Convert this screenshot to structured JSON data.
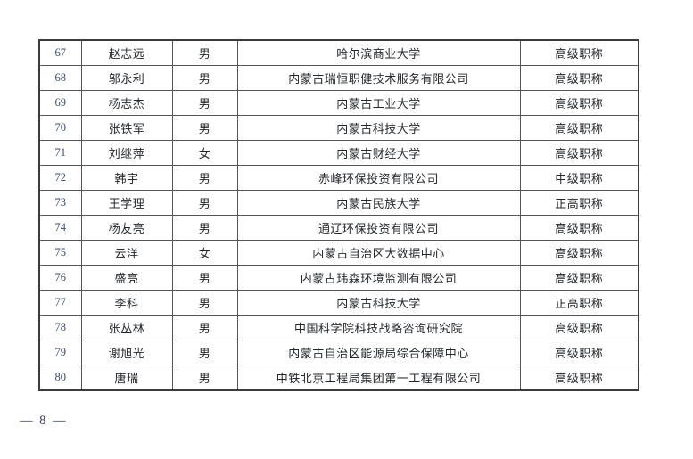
{
  "document": {
    "footer_page_number": "— 8 —"
  },
  "colors": {
    "outer_border": "#3c3c3c",
    "grid_border": "#565656",
    "text": "#23272b",
    "number_text": "#3d4b63",
    "page_background": "#ffffff"
  },
  "table": {
    "rows": [
      {
        "no": "67",
        "name": "赵志远",
        "gender": "男",
        "organization": "哈尔滨商业大学",
        "title": "高级职称"
      },
      {
        "no": "68",
        "name": "邬永利",
        "gender": "男",
        "organization": "内蒙古瑞恒职健技术服务有限公司",
        "title": "高级职称"
      },
      {
        "no": "69",
        "name": "杨志杰",
        "gender": "男",
        "organization": "内蒙古工业大学",
        "title": "高级职称"
      },
      {
        "no": "70",
        "name": "张铁军",
        "gender": "男",
        "organization": "内蒙古科技大学",
        "title": "高级职称"
      },
      {
        "no": "71",
        "name": "刘继萍",
        "gender": "女",
        "organization": "内蒙古财经大学",
        "title": "高级职称"
      },
      {
        "no": "72",
        "name": "韩宇",
        "gender": "男",
        "organization": "赤峰环保投资有限公司",
        "title": "中级职称"
      },
      {
        "no": "73",
        "name": "王学理",
        "gender": "男",
        "organization": "内蒙古民族大学",
        "title": "正高职称"
      },
      {
        "no": "74",
        "name": "杨友亮",
        "gender": "男",
        "organization": "通辽环保投资有限公司",
        "title": "高级职称"
      },
      {
        "no": "75",
        "name": "云洋",
        "gender": "女",
        "organization": "内蒙古自治区大数据中心",
        "title": "高级职称"
      },
      {
        "no": "76",
        "name": "盛亮",
        "gender": "男",
        "organization": "内蒙古玮森环境监测有限公司",
        "title": "高级职称"
      },
      {
        "no": "77",
        "name": "李科",
        "gender": "男",
        "organization": "内蒙古科技大学",
        "title": "正高职称"
      },
      {
        "no": "78",
        "name": "张丛林",
        "gender": "男",
        "organization": "中国科学院科技战略咨询研究院",
        "title": "高级职称"
      },
      {
        "no": "79",
        "name": "谢旭光",
        "gender": "男",
        "organization": "内蒙古自治区能源局综合保障中心",
        "title": "高级职称"
      },
      {
        "no": "80",
        "name": "唐瑞",
        "gender": "男",
        "organization": "中铁北京工程局集团第一工程有限公司",
        "title": "高级职称"
      }
    ]
  }
}
